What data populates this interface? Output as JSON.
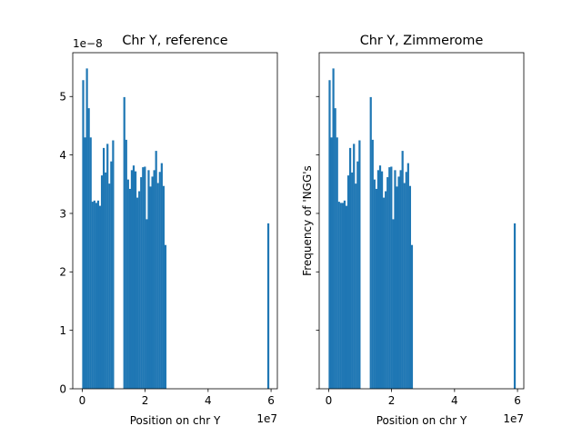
{
  "figure": {
    "background": "#ffffff",
    "bar_color": "#1f77b4"
  },
  "chart_data": [
    {
      "type": "bar",
      "title": "Chr Y, reference",
      "xlabel": "Position on chr Y",
      "ylabel": "",
      "x_offset_text": "1e7",
      "y_offset_text": "1e−8",
      "xlim": [
        -0.3,
        6.2
      ],
      "ylim": [
        0,
        5.75
      ],
      "xticks": [
        0,
        2,
        4,
        6
      ],
      "xtick_labels": [
        "0",
        "2",
        "4",
        "6"
      ],
      "yticks": [
        0,
        1,
        2,
        3,
        4,
        5
      ],
      "ytick_labels": [
        "0",
        "1",
        "2",
        "3",
        "4",
        "5"
      ],
      "bin_width": 0.0594,
      "bin_starts": [
        0.0,
        0.0594,
        0.1188,
        0.1782,
        0.2376,
        0.297,
        0.3564,
        0.4158,
        0.4752,
        0.5346,
        0.594,
        0.6534,
        0.7128,
        0.7722,
        0.8316,
        0.891,
        0.9504,
        1.3068,
        1.3662,
        1.4256,
        1.485,
        1.5444,
        1.6038,
        1.6632,
        1.7226,
        1.782,
        1.8414,
        1.9008,
        1.9602,
        2.0196,
        2.079,
        2.1384,
        2.1978,
        2.2572,
        2.3166,
        2.376,
        2.4354,
        2.4948,
        2.5542,
        2.6136,
        2.673,
        2.7324,
        2.7918,
        2.8512,
        5.8806
      ],
      "values": [
        5.28,
        4.3,
        5.48,
        4.8,
        4.3,
        3.2,
        3.22,
        3.18,
        3.22,
        3.13,
        3.65,
        4.12,
        3.7,
        4.19,
        3.51,
        3.89,
        4.25,
        4.99,
        4.26,
        3.58,
        3.42,
        3.74,
        3.82,
        3.72,
        3.27,
        3.38,
        3.62,
        3.79,
        3.8,
        2.9,
        3.74,
        3.46,
        3.63,
        3.74,
        4.07,
        3.52,
        3.71,
        3.86,
        3.47,
        2.46,
        0,
        0,
        0,
        0,
        2.83
      ],
      "y_scale_note": "values multiplied by 1e-8; positions multiplied by 1e7",
      "grid": false,
      "legend": "none"
    },
    {
      "type": "bar",
      "title": "Chr Y, Zimmerome",
      "xlabel": "Position on chr Y",
      "ylabel": "Frequency of 'NGG's",
      "x_offset_text": "1e7",
      "xlim": [
        -0.3,
        6.2
      ],
      "ylim": [
        0,
        5.75
      ],
      "xticks": [
        0,
        2,
        4,
        6
      ],
      "xtick_labels": [
        "0",
        "2",
        "4",
        "6"
      ],
      "yticks": [
        0,
        1,
        2,
        3,
        4,
        5
      ],
      "ytick_labels": [],
      "bin_width": 0.0594,
      "bin_starts": [
        0.0,
        0.0594,
        0.1188,
        0.1782,
        0.2376,
        0.297,
        0.3564,
        0.4158,
        0.4752,
        0.5346,
        0.594,
        0.6534,
        0.7128,
        0.7722,
        0.8316,
        0.891,
        0.9504,
        1.3068,
        1.3662,
        1.4256,
        1.485,
        1.5444,
        1.6038,
        1.6632,
        1.7226,
        1.782,
        1.8414,
        1.9008,
        1.9602,
        2.0196,
        2.079,
        2.1384,
        2.1978,
        2.2572,
        2.3166,
        2.376,
        2.4354,
        2.4948,
        2.5542,
        2.6136,
        2.673,
        2.7324,
        2.7918,
        2.8512,
        5.8806
      ],
      "values": [
        5.28,
        4.3,
        5.48,
        4.8,
        4.3,
        3.2,
        3.18,
        3.18,
        3.22,
        3.13,
        3.65,
        4.12,
        3.7,
        4.19,
        3.51,
        3.89,
        4.25,
        4.99,
        4.26,
        3.58,
        3.42,
        3.74,
        3.82,
        3.72,
        3.27,
        3.38,
        3.62,
        3.79,
        3.8,
        2.9,
        3.74,
        3.46,
        3.63,
        3.74,
        4.07,
        3.52,
        3.71,
        3.86,
        3.47,
        2.46,
        0,
        0,
        0,
        0,
        2.83
      ],
      "y_scale_note": "values multiplied by 1e-8; positions multiplied by 1e7",
      "grid": false,
      "legend": "none"
    }
  ]
}
